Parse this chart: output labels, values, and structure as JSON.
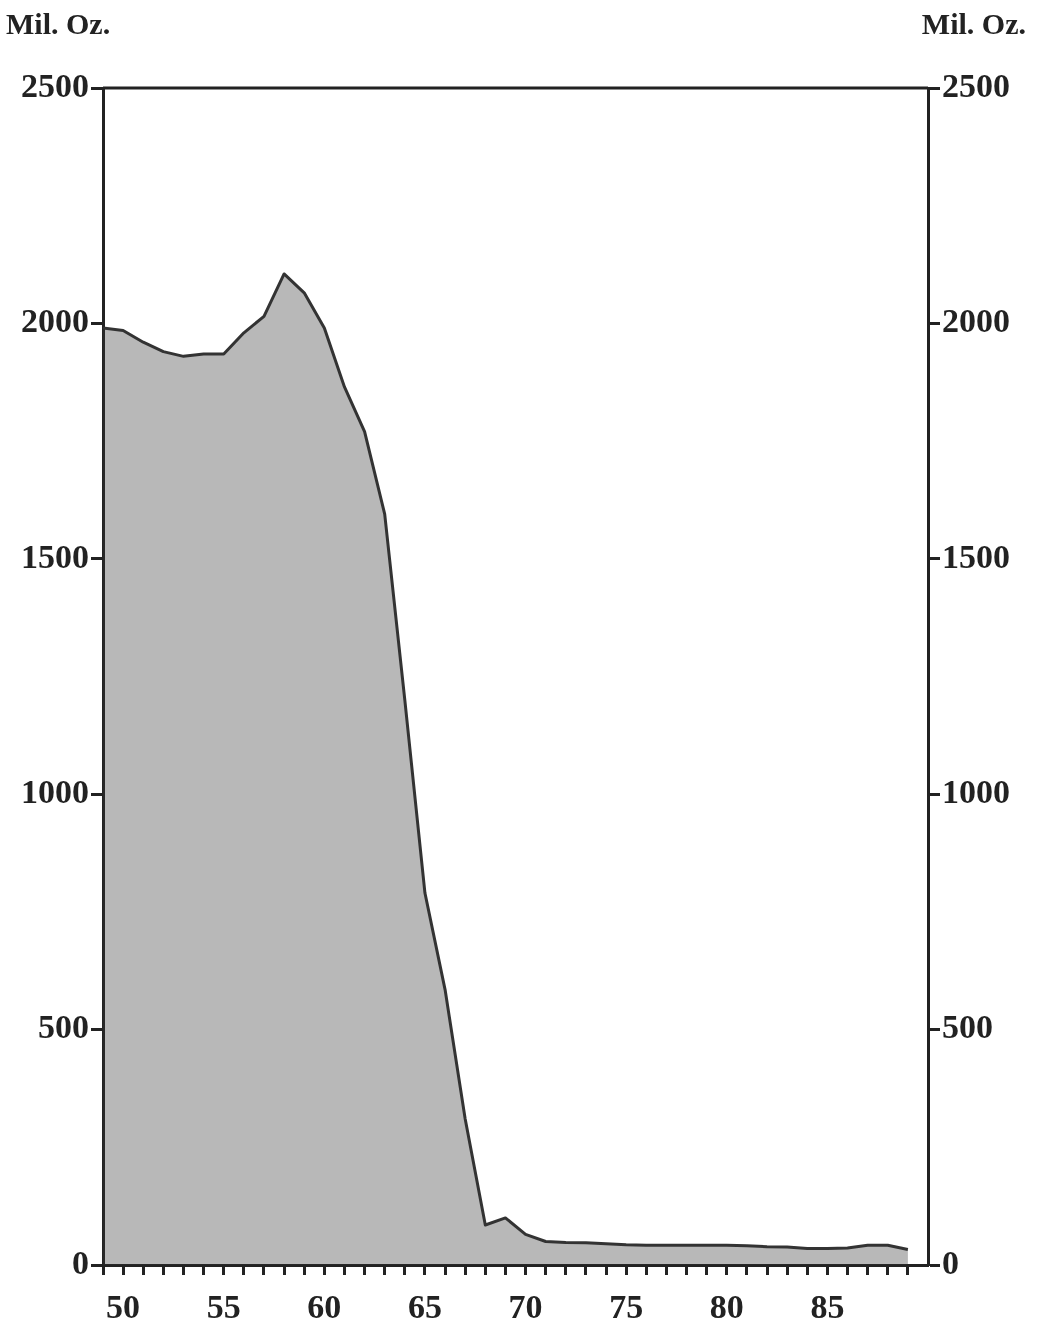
{
  "chart_data": {
    "type": "area",
    "ylabel": "Mil. Oz.",
    "y2label": "Mil. Oz.",
    "x": [
      49,
      50,
      51,
      52,
      53,
      54,
      55,
      56,
      57,
      58,
      59,
      60,
      61,
      62,
      63,
      64,
      65,
      66,
      67,
      68,
      69,
      70,
      71,
      72,
      73,
      74,
      75,
      76,
      77,
      78,
      79,
      80,
      81,
      82,
      83,
      84,
      85,
      86,
      87,
      88,
      89
    ],
    "series": [
      {
        "color": "#333333",
        "values": [
          1990,
          1985,
          1960,
          1940,
          1930,
          1935,
          1935,
          1980,
          2015,
          2105,
          2065,
          1990,
          1865,
          1770,
          1595,
          1200,
          790,
          585,
          310,
          85,
          100,
          65,
          50,
          48,
          47,
          45,
          43,
          42,
          42,
          42,
          42,
          42,
          41,
          39,
          38,
          35,
          35,
          36,
          42,
          42,
          33
        ]
      }
    ],
    "xlim": [
      49,
      90
    ],
    "xticks": [
      {
        "value": 49,
        "label": null
      },
      50,
      {
        "value": 51,
        "label": null
      },
      {
        "value": 52,
        "label": null
      },
      {
        "value": 53,
        "label": null
      },
      {
        "value": 54,
        "label": null
      },
      55,
      {
        "value": 56,
        "label": null
      },
      {
        "value": 57,
        "label": null
      },
      {
        "value": 58,
        "label": null
      },
      {
        "value": 59,
        "label": null
      },
      60,
      {
        "value": 61,
        "label": null
      },
      {
        "value": 62,
        "label": null
      },
      {
        "value": 63,
        "label": null
      },
      {
        "value": 64,
        "label": null
      },
      65,
      {
        "value": 66,
        "label": null
      },
      {
        "value": 67,
        "label": null
      },
      {
        "value": 68,
        "label": null
      },
      {
        "value": 69,
        "label": null
      },
      70,
      {
        "value": 71,
        "label": null
      },
      {
        "value": 72,
        "label": null
      },
      {
        "value": 73,
        "label": null
      },
      {
        "value": 74,
        "label": null
      },
      75,
      {
        "value": 76,
        "label": null
      },
      {
        "value": 77,
        "label": null
      },
      {
        "value": 78,
        "label": null
      },
      {
        "value": 79,
        "label": null
      },
      80,
      {
        "value": 81,
        "label": null
      },
      {
        "value": 82,
        "label": null
      },
      {
        "value": 83,
        "label": null
      },
      {
        "value": 84,
        "label": null
      },
      85,
      {
        "value": 86,
        "label": null
      },
      {
        "value": 87,
        "label": null
      },
      {
        "value": 88,
        "label": null
      },
      {
        "value": 89,
        "label": null
      }
    ],
    "ylim": [
      0,
      2500
    ],
    "yticks": [
      0,
      500,
      1000,
      1500,
      2000,
      2500
    ],
    "y2lim": [
      0,
      2500
    ],
    "y2ticks": [
      0,
      500,
      1000,
      1500,
      2000,
      2500
    ],
    "grid": false,
    "legend": false,
    "marker": "none",
    "line_style": "solid"
  }
}
